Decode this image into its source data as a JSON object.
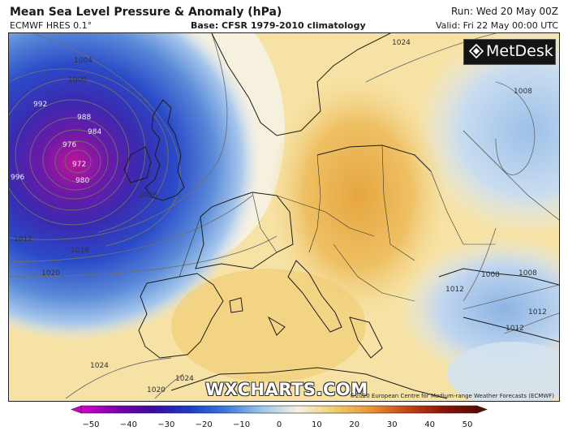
{
  "header": {
    "title": "Mean Sea Level Pressure & Anomaly (hPa)",
    "model": "ECMWF HRES 0.1°",
    "base": "Base: CFSR 1979-2010 climatology",
    "run": "Run: Wed 20 May 00Z",
    "valid": "Valid: Fri 22 May 00:00 UTC"
  },
  "logo": {
    "text": "MetDesk",
    "icon": "metdesk-logo-icon"
  },
  "watermark": "WXCHARTS.COM",
  "copyright": "©2020 European Centre for Medium-range Weather Forecasts (ECMWF)",
  "isobar_labels": [
    "1004",
    "1000",
    "992",
    "988",
    "984",
    "976",
    "972",
    "980",
    "996",
    "1008",
    "1012",
    "1016",
    "1020",
    "1024",
    "1024",
    "1008",
    "1008",
    "1012",
    "1008",
    "1012",
    "1024",
    "1020",
    "1012"
  ],
  "colorbar": {
    "ticks": [
      "−50",
      "−40",
      "−30",
      "−20",
      "−10",
      "0",
      "10",
      "20",
      "30",
      "40",
      "50"
    ],
    "colors": [
      "#d400c8",
      "#7a00a8",
      "#3a0aa0",
      "#1a3cc8",
      "#3a78d8",
      "#9cc4ec",
      "#f4f2e4",
      "#f0d070",
      "#e89838",
      "#c84818",
      "#8c1808",
      "#5a0a04"
    ]
  },
  "colors": {
    "low_center": "#c0129a",
    "deep_blue": "#2a4ac8",
    "light_blue": "#c8dcf0",
    "anomaly_yellow": "#f4dc90",
    "anomaly_orange": "#e8a844"
  }
}
